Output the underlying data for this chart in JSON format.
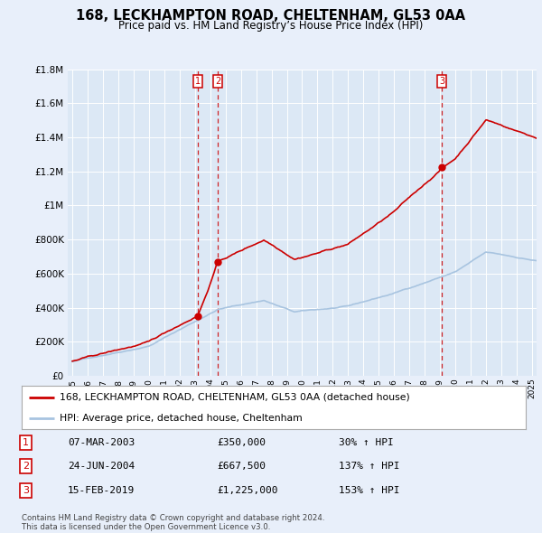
{
  "title": "168, LECKHAMPTON ROAD, CHELTENHAM, GL53 0AA",
  "subtitle": "Price paid vs. HM Land Registry’s House Price Index (HPI)",
  "legend_label_red": "168, LECKHAMPTON ROAD, CHELTENHAM, GL53 0AA (detached house)",
  "legend_label_blue": "HPI: Average price, detached house, Cheltenham",
  "transactions": [
    {
      "num": 1,
      "date_str": "07-MAR-2003",
      "year": 2003.18,
      "price": 350000,
      "pct": "30%",
      "dir": "↑"
    },
    {
      "num": 2,
      "date_str": "24-JUN-2004",
      "year": 2004.48,
      "price": 667500,
      "pct": "137%",
      "dir": "↑"
    },
    {
      "num": 3,
      "date_str": "15-FEB-2019",
      "year": 2019.12,
      "price": 1225000,
      "pct": "153%",
      "dir": "↑"
    }
  ],
  "footnote1": "Contains HM Land Registry data © Crown copyright and database right 2024.",
  "footnote2": "This data is licensed under the Open Government Licence v3.0.",
  "ylim": [
    0,
    1800000
  ],
  "xlim_left": 1994.7,
  "xlim_right": 2025.3,
  "background_color": "#e8effa",
  "plot_bg": "#dce8f5",
  "red_color": "#cc0000",
  "blue_color": "#a8c4e0",
  "vline_color": "#cc0000"
}
